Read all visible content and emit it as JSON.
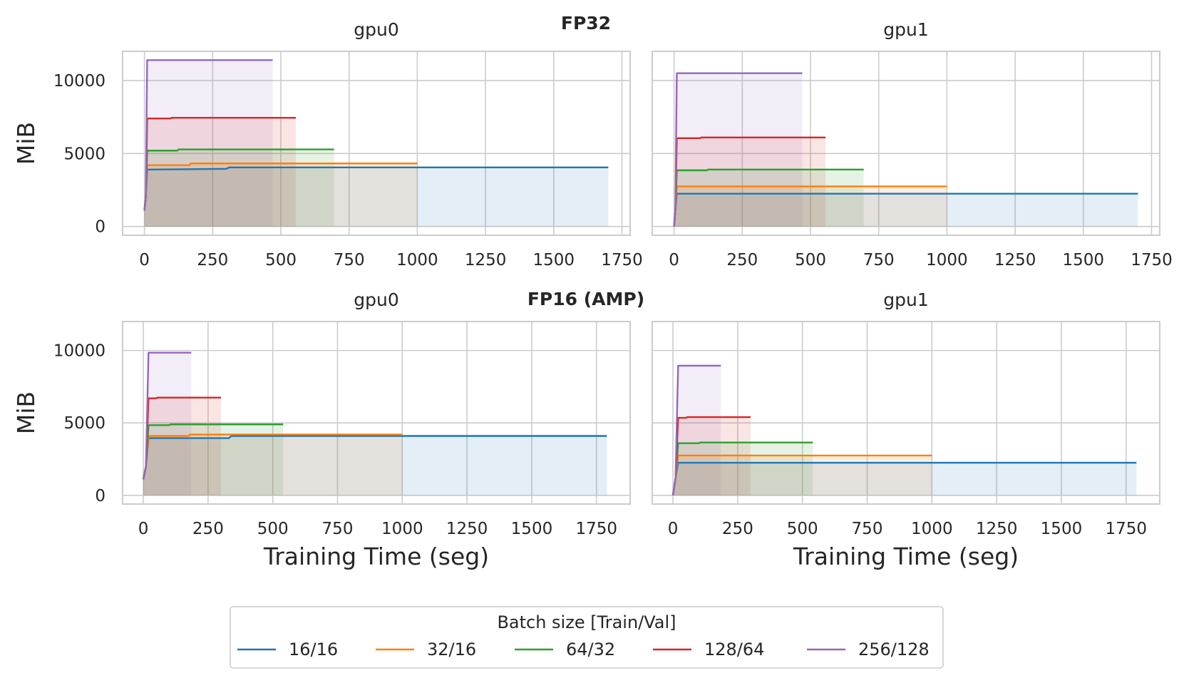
{
  "figure": {
    "legend": {
      "title": "Batch size [Train/Val]",
      "placement": "bottom-center"
    }
  },
  "chart_data": [
    {
      "type": "area",
      "group_title": "FP32",
      "title": "gpu0",
      "xlabel": "",
      "ylabel": "MiB",
      "xlim": [
        -80,
        1780
      ],
      "ylim": [
        -600,
        12000
      ],
      "xticks": [
        "0",
        "250",
        "500",
        "750",
        "1000",
        "1250",
        "1500",
        "1750"
      ],
      "yticks": [
        "0",
        "5000",
        "10000"
      ],
      "grid": true,
      "series": [
        {
          "name": "16/16",
          "color": "#1f77b4",
          "points": [
            [
              0,
              1100
            ],
            [
              5,
              2000
            ],
            [
              10,
              3900
            ],
            [
              300,
              3950
            ],
            [
              310,
              4050
            ],
            [
              1700,
              4050
            ]
          ]
        },
        {
          "name": "32/16",
          "color": "#ff7f0e",
          "points": [
            [
              0,
              1100
            ],
            [
              5,
              2000
            ],
            [
              10,
              4200
            ],
            [
              165,
              4200
            ],
            [
              170,
              4320
            ],
            [
              1000,
              4320
            ]
          ]
        },
        {
          "name": "64/32",
          "color": "#2ca02c",
          "points": [
            [
              0,
              1100
            ],
            [
              5,
              2000
            ],
            [
              10,
              5200
            ],
            [
              120,
              5200
            ],
            [
              125,
              5280
            ],
            [
              695,
              5280
            ]
          ]
        },
        {
          "name": "128/64",
          "color": "#d62728",
          "points": [
            [
              0,
              1100
            ],
            [
              5,
              2000
            ],
            [
              10,
              7400
            ],
            [
              95,
              7400
            ],
            [
              100,
              7450
            ],
            [
              555,
              7450
            ]
          ]
        },
        {
          "name": "256/128",
          "color": "#9467bd",
          "points": [
            [
              0,
              1100
            ],
            [
              5,
              2000
            ],
            [
              10,
              11400
            ],
            [
              470,
              11400
            ]
          ]
        }
      ]
    },
    {
      "type": "area",
      "group_title": "FP32",
      "title": "gpu1",
      "xlabel": "",
      "ylabel": "",
      "xlim": [
        -80,
        1780
      ],
      "ylim": [
        -600,
        12000
      ],
      "xticks": [
        "0",
        "250",
        "500",
        "750",
        "1000",
        "1250",
        "1500",
        "1750"
      ],
      "yticks": [],
      "grid": true,
      "series": [
        {
          "name": "16/16",
          "color": "#1f77b4",
          "points": [
            [
              0,
              0
            ],
            [
              5,
              1200
            ],
            [
              10,
              2250
            ],
            [
              1700,
              2250
            ]
          ]
        },
        {
          "name": "32/16",
          "color": "#ff7f0e",
          "points": [
            [
              0,
              0
            ],
            [
              5,
              1200
            ],
            [
              10,
              2750
            ],
            [
              1000,
              2750
            ]
          ]
        },
        {
          "name": "64/32",
          "color": "#2ca02c",
          "points": [
            [
              0,
              0
            ],
            [
              5,
              1200
            ],
            [
              10,
              3850
            ],
            [
              120,
              3850
            ],
            [
              125,
              3900
            ],
            [
              695,
              3900
            ]
          ]
        },
        {
          "name": "128/64",
          "color": "#d62728",
          "points": [
            [
              0,
              0
            ],
            [
              5,
              1200
            ],
            [
              10,
              6050
            ],
            [
              95,
              6050
            ],
            [
              100,
              6100
            ],
            [
              555,
              6100
            ]
          ]
        },
        {
          "name": "256/128",
          "color": "#9467bd",
          "points": [
            [
              0,
              0
            ],
            [
              5,
              1200
            ],
            [
              10,
              10500
            ],
            [
              470,
              10500
            ]
          ]
        }
      ]
    },
    {
      "type": "area",
      "group_title": "FP16 (AMP)",
      "title": "gpu0",
      "xlabel": "Training Time (seg)",
      "ylabel": "MiB",
      "xlim": [
        -80,
        1880
      ],
      "ylim": [
        -600,
        12000
      ],
      "xticks": [
        "0",
        "250",
        "500",
        "750",
        "1000",
        "1250",
        "1500",
        "1750"
      ],
      "yticks": [
        "0",
        "5000",
        "10000"
      ],
      "grid": true,
      "series": [
        {
          "name": "16/16",
          "color": "#1f77b4",
          "points": [
            [
              0,
              1100
            ],
            [
              10,
              2000
            ],
            [
              20,
              3950
            ],
            [
              330,
              3950
            ],
            [
              340,
              4100
            ],
            [
              1790,
              4100
            ]
          ]
        },
        {
          "name": "32/16",
          "color": "#ff7f0e",
          "points": [
            [
              0,
              1100
            ],
            [
              10,
              2000
            ],
            [
              20,
              4100
            ],
            [
              175,
              4100
            ],
            [
              180,
              4200
            ],
            [
              1000,
              4200
            ]
          ]
        },
        {
          "name": "64/32",
          "color": "#2ca02c",
          "points": [
            [
              0,
              1100
            ],
            [
              10,
              2000
            ],
            [
              20,
              4850
            ],
            [
              100,
              4850
            ],
            [
              105,
              4900
            ],
            [
              540,
              4900
            ]
          ]
        },
        {
          "name": "128/64",
          "color": "#d62728",
          "points": [
            [
              0,
              1100
            ],
            [
              10,
              2000
            ],
            [
              20,
              6700
            ],
            [
              50,
              6700
            ],
            [
              55,
              6750
            ],
            [
              300,
              6750
            ]
          ]
        },
        {
          "name": "256/128",
          "color": "#9467bd",
          "points": [
            [
              0,
              1100
            ],
            [
              10,
              2000
            ],
            [
              20,
              9850
            ],
            [
              185,
              9850
            ]
          ]
        }
      ]
    },
    {
      "type": "area",
      "group_title": "FP16 (AMP)",
      "title": "gpu1",
      "xlabel": "Training Time (seg)",
      "ylabel": "",
      "xlim": [
        -80,
        1880
      ],
      "ylim": [
        -600,
        12000
      ],
      "xticks": [
        "0",
        "250",
        "500",
        "750",
        "1000",
        "1250",
        "1500",
        "1750"
      ],
      "yticks": [],
      "grid": true,
      "series": [
        {
          "name": "16/16",
          "color": "#1f77b4",
          "points": [
            [
              0,
              0
            ],
            [
              10,
              1200
            ],
            [
              20,
              2250
            ],
            [
              1790,
              2250
            ]
          ]
        },
        {
          "name": "32/16",
          "color": "#ff7f0e",
          "points": [
            [
              0,
              0
            ],
            [
              10,
              1200
            ],
            [
              20,
              2750
            ],
            [
              1000,
              2750
            ]
          ]
        },
        {
          "name": "64/32",
          "color": "#2ca02c",
          "points": [
            [
              0,
              0
            ],
            [
              10,
              1200
            ],
            [
              20,
              3600
            ],
            [
              100,
              3600
            ],
            [
              105,
              3650
            ],
            [
              540,
              3650
            ]
          ]
        },
        {
          "name": "128/64",
          "color": "#d62728",
          "points": [
            [
              0,
              0
            ],
            [
              10,
              1200
            ],
            [
              20,
              5350
            ],
            [
              50,
              5350
            ],
            [
              55,
              5400
            ],
            [
              300,
              5400
            ]
          ]
        },
        {
          "name": "256/128",
          "color": "#9467bd",
          "points": [
            [
              0,
              0
            ],
            [
              10,
              1200
            ],
            [
              20,
              8950
            ],
            [
              185,
              8950
            ]
          ]
        }
      ]
    }
  ]
}
